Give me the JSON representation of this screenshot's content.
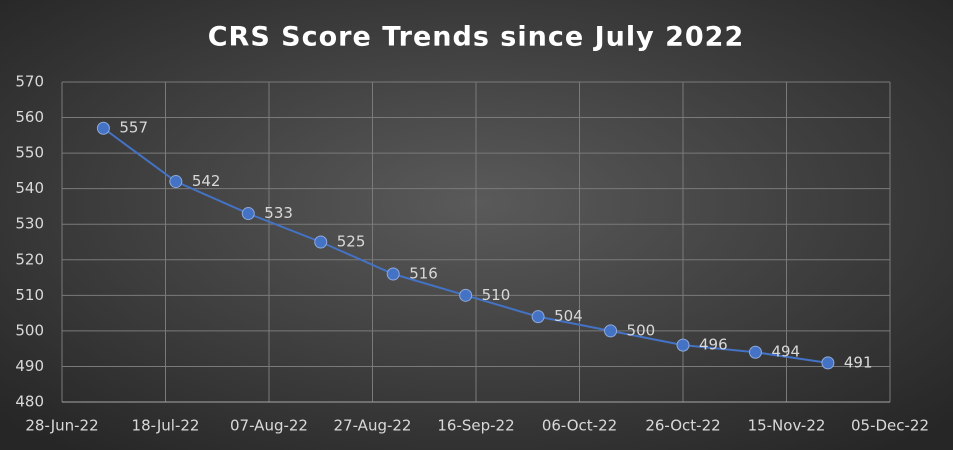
{
  "chart_data": {
    "type": "line",
    "title": "CRS Score Trends since July 2022",
    "x": [
      "2022-07-06",
      "2022-07-20",
      "2022-08-03",
      "2022-08-17",
      "2022-08-31",
      "2022-09-14",
      "2022-09-28",
      "2022-10-12",
      "2022-10-26",
      "2022-11-09",
      "2022-11-23"
    ],
    "values": [
      557,
      542,
      533,
      525,
      516,
      510,
      504,
      500,
      496,
      494,
      491
    ],
    "color": "#4472c4",
    "xlim": [
      "2022-06-28",
      "2022-12-05"
    ],
    "xticks": [
      {
        "value": "2022-06-28",
        "label": "28-Jun-22"
      },
      {
        "value": "2022-07-18",
        "label": "18-Jul-22"
      },
      {
        "value": "2022-08-07",
        "label": "07-Aug-22"
      },
      {
        "value": "2022-08-27",
        "label": "27-Aug-22"
      },
      {
        "value": "2022-09-16",
        "label": "16-Sep-22"
      },
      {
        "value": "2022-10-06",
        "label": "06-Oct-22"
      },
      {
        "value": "2022-10-26",
        "label": "26-Oct-22"
      },
      {
        "value": "2022-11-15",
        "label": "15-Nov-22"
      },
      {
        "value": "2022-12-05",
        "label": "05-Dec-22"
      }
    ],
    "ylim": [
      480,
      570
    ],
    "yticks": [
      480,
      490,
      500,
      510,
      520,
      530,
      540,
      550,
      560,
      570
    ],
    "grid": true
  }
}
